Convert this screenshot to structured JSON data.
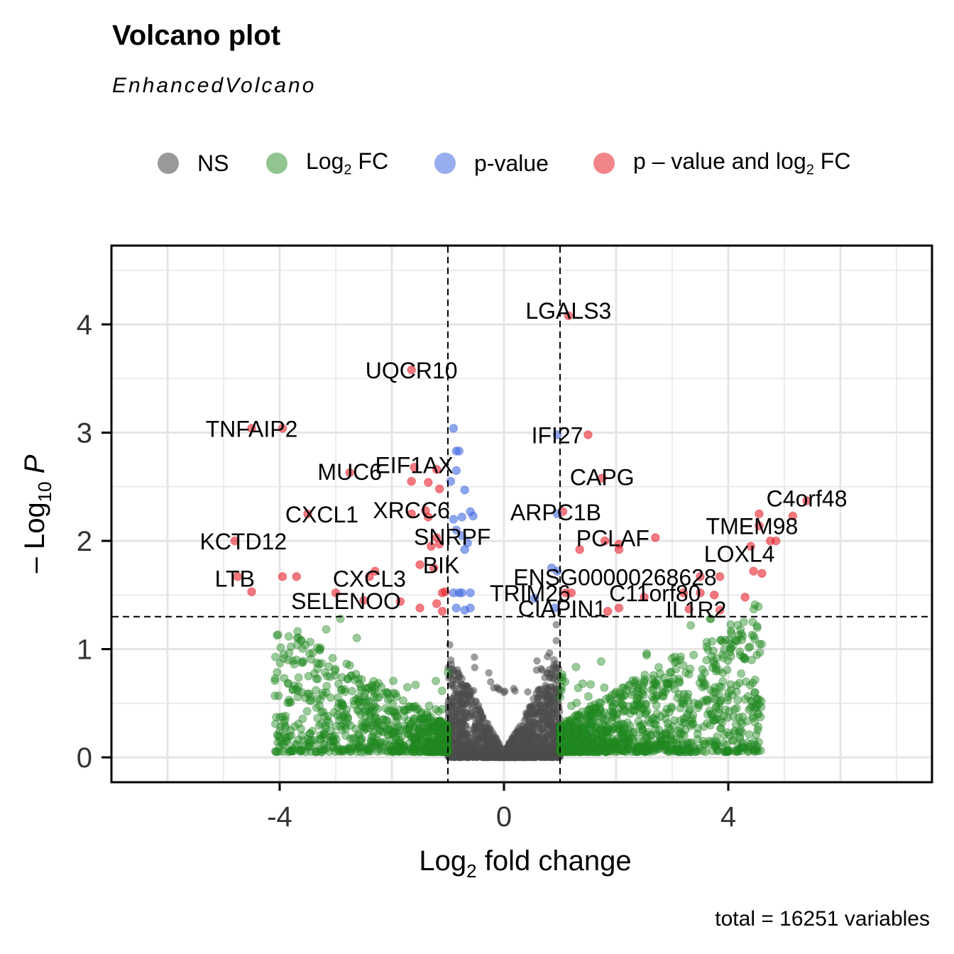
{
  "title": "Volcano plot",
  "subtitle": "EnhancedVolcano",
  "legend": [
    {
      "label": "NS",
      "color": "#555555"
    },
    {
      "label": "Log2 FC",
      "color": "#228B22"
    },
    {
      "label": "p-value",
      "color": "#4169E1"
    },
    {
      "label": "p – value and log2 FC",
      "color": "#E8202A"
    }
  ],
  "caption": "total = 16251 variables",
  "chart_data": {
    "type": "scatter",
    "title": "Volcano plot",
    "subtitle": "EnhancedVolcano",
    "xlabel": "Log2 fold change",
    "ylabel": "–Log10 P",
    "xlim": [
      -7,
      7.6
    ],
    "ylim": [
      -0.22,
      4.68
    ],
    "x_ticks": [
      -4,
      0,
      4
    ],
    "y_ticks": [
      0,
      1,
      2,
      3,
      4
    ],
    "grid": true,
    "legend_position": "top",
    "fc_cutoff": 1,
    "p_cutoff_log10": 1.3,
    "total_variables": 16251,
    "series": [
      {
        "name": "p – value and log2 FC",
        "color": "#E8202A",
        "points": [
          {
            "x": 1.15,
            "y": 4.08,
            "label": "LGALS3"
          },
          {
            "x": -1.65,
            "y": 3.58,
            "label": "UQCR10"
          },
          {
            "x": -4.5,
            "y": 3.04,
            "label": "TNFAIP2"
          },
          {
            "x": -3.95,
            "y": 3.04
          },
          {
            "x": 1.5,
            "y": 2.98
          },
          {
            "x": 1.75,
            "y": 2.58,
            "label": "CAPG"
          },
          {
            "x": -2.75,
            "y": 2.63,
            "label": "MUC6"
          },
          {
            "x": -1.6,
            "y": 2.68,
            "label": "EIF1AX"
          },
          {
            "x": -1.2,
            "y": 2.66
          },
          {
            "x": -1.65,
            "y": 2.55
          },
          {
            "x": -1.35,
            "y": 2.54
          },
          {
            "x": -1.15,
            "y": 2.48
          },
          {
            "x": 5.4,
            "y": 2.37,
            "label": "C4orf48"
          },
          {
            "x": 5.15,
            "y": 2.23
          },
          {
            "x": 4.55,
            "y": 2.25
          },
          {
            "x": 1.05,
            "y": 2.27,
            "label": "ARPC1B"
          },
          {
            "x": -3.5,
            "y": 2.25,
            "label": "CXCL1"
          },
          {
            "x": -1.65,
            "y": 2.25,
            "label": "XRCC6"
          },
          {
            "x": -1.4,
            "y": 2.28
          },
          {
            "x": -1.35,
            "y": 2.22
          },
          {
            "x": 4.55,
            "y": 2.14,
            "label": "TMEM98"
          },
          {
            "x": 2.7,
            "y": 2.03,
            "label": "PCLAF"
          },
          {
            "x": 1.8,
            "y": 2.0
          },
          {
            "x": 2.05,
            "y": 1.97
          },
          {
            "x": -4.8,
            "y": 2.0,
            "label": "KCTD12"
          },
          {
            "x": -1.2,
            "y": 2.03,
            "label": "SNRPF"
          },
          {
            "x": -1.15,
            "y": 1.97
          },
          {
            "x": -1.3,
            "y": 1.95
          },
          {
            "x": 4.75,
            "y": 2.0
          },
          {
            "x": 4.85,
            "y": 2.0
          },
          {
            "x": 4.4,
            "y": 1.95,
            "label": "LOXL4"
          },
          {
            "x": 1.35,
            "y": 1.92
          },
          {
            "x": 2.05,
            "y": 1.92
          },
          {
            "x": -1.5,
            "y": 1.78,
            "label": "BIK"
          },
          {
            "x": -1.25,
            "y": 1.75
          },
          {
            "x": -2.3,
            "y": 1.72
          },
          {
            "x": 4.45,
            "y": 1.72
          },
          {
            "x": 4.6,
            "y": 1.7
          },
          {
            "x": -4.75,
            "y": 1.67,
            "label": "LTB"
          },
          {
            "x": -3.95,
            "y": 1.67
          },
          {
            "x": -3.7,
            "y": 1.67
          },
          {
            "x": -2.4,
            "y": 1.67,
            "label": "CXCL3"
          },
          {
            "x": 3.5,
            "y": 1.67,
            "label": "ENSG00000268628"
          },
          {
            "x": 3.85,
            "y": 1.67
          },
          {
            "x": 1.1,
            "y": 1.52,
            "label": "TRIM26"
          },
          {
            "x": 1.2,
            "y": 1.52
          },
          {
            "x": 2.5,
            "y": 1.48
          },
          {
            "x": 3.2,
            "y": 1.52,
            "label": "C11orf80"
          },
          {
            "x": 3.5,
            "y": 1.52
          },
          {
            "x": 3.75,
            "y": 1.5
          },
          {
            "x": 4.3,
            "y": 1.48
          },
          {
            "x": -4.5,
            "y": 1.53
          },
          {
            "x": -3.0,
            "y": 1.52
          },
          {
            "x": -1.1,
            "y": 1.52
          },
          {
            "x": -1.05,
            "y": 1.53
          },
          {
            "x": -2.5,
            "y": 1.45,
            "label": "SELENOO"
          },
          {
            "x": -1.85,
            "y": 1.44
          },
          {
            "x": -1.5,
            "y": 1.38
          },
          {
            "x": -1.2,
            "y": 1.42
          },
          {
            "x": -1.1,
            "y": 1.35
          },
          {
            "x": 2.05,
            "y": 1.38,
            "label": "CIAPIN1"
          },
          {
            "x": 1.85,
            "y": 1.35
          },
          {
            "x": 3.3,
            "y": 1.37,
            "label": "IL1R2"
          },
          {
            "x": 3.85,
            "y": 1.36
          }
        ]
      },
      {
        "name": "p-value",
        "color": "#4169E1",
        "points": [
          {
            "x": -0.9,
            "y": 3.04
          },
          {
            "x": -0.85,
            "y": 2.83
          },
          {
            "x": -0.8,
            "y": 2.83
          },
          {
            "x": -0.85,
            "y": 2.65
          },
          {
            "x": -0.95,
            "y": 2.55
          },
          {
            "x": -0.7,
            "y": 2.47
          },
          {
            "x": 0.95,
            "y": 2.98,
            "label": "IFI27"
          },
          {
            "x": -0.6,
            "y": 2.27
          },
          {
            "x": -0.55,
            "y": 2.23
          },
          {
            "x": -0.75,
            "y": 2.22
          },
          {
            "x": -0.9,
            "y": 2.2
          },
          {
            "x": 0.95,
            "y": 2.25
          },
          {
            "x": -0.85,
            "y": 2.1
          },
          {
            "x": -0.75,
            "y": 2.05
          },
          {
            "x": -0.65,
            "y": 1.98
          },
          {
            "x": -0.7,
            "y": 1.92
          },
          {
            "x": 0.85,
            "y": 1.75
          },
          {
            "x": 0.95,
            "y": 1.72
          },
          {
            "x": -0.9,
            "y": 1.52
          },
          {
            "x": -0.8,
            "y": 1.52
          },
          {
            "x": -0.75,
            "y": 1.52
          },
          {
            "x": -0.6,
            "y": 1.52
          },
          {
            "x": 0.55,
            "y": 1.47
          },
          {
            "x": -0.85,
            "y": 1.38
          },
          {
            "x": -0.7,
            "y": 1.36
          },
          {
            "x": -0.6,
            "y": 1.38
          },
          {
            "x": 0.9,
            "y": 1.38
          }
        ]
      },
      {
        "name": "Log2 FC",
        "color": "#228B22",
        "points": []
      },
      {
        "name": "NS",
        "color": "#555555",
        "points": []
      }
    ]
  }
}
